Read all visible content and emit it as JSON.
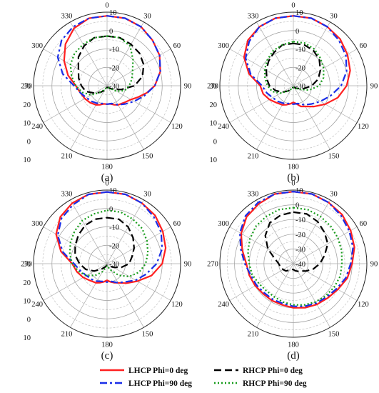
{
  "chart_data": {
    "type": "polar-line",
    "angle_unit": "deg",
    "angle_ticks": [
      0,
      30,
      60,
      90,
      120,
      150,
      180,
      210,
      240,
      270,
      300,
      330
    ],
    "radial_range": [
      -40,
      10
    ],
    "radial_ticks_right": [
      "10",
      "0",
      "-10",
      "-20",
      "-30"
    ],
    "radial_ticks_left": [
      "10",
      "0",
      "10",
      "20",
      "30"
    ],
    "radial_ticks_full": [
      "10",
      "0",
      "-10",
      "-20",
      "-30",
      "-40"
    ],
    "grid": true,
    "legend": [
      {
        "name": "LHCP Phi=0 deg",
        "color": "#ff2020",
        "dash": "solid"
      },
      {
        "name": "RHCP Phi=0 deg",
        "color": "#000000",
        "dash": "dash"
      },
      {
        "name": "LHCP Phi=90 deg",
        "color": "#1a2ee8",
        "dash": "dashdot"
      },
      {
        "name": "RHCP Phi=90 deg",
        "color": "#169c1a",
        "dash": "dot"
      }
    ],
    "panels": [
      {
        "label": "(a)",
        "r_min": -30,
        "series": [
          {
            "name": "LHCP Phi=0 deg",
            "theta": [
              0,
              15,
              30,
              45,
              60,
              75,
              90,
              100,
              110,
              120,
              135,
              150,
              160,
              170,
              180,
              190,
              200,
              210,
              225,
              240,
              255,
              270,
              285,
              300,
              315,
              330,
              345,
              360
            ],
            "r": [
              8,
              8,
              7,
              5,
              3,
              0,
              -4,
              -8,
              -12,
              -15,
              -17,
              -18,
              -19,
              -20,
              -20,
              -20,
              -19,
              -18,
              -17,
              -16,
              -15,
              -13,
              -8,
              -3,
              2,
              6,
              8,
              8
            ]
          },
          {
            "name": "RHCP Phi=0 deg",
            "theta": [
              0,
              15,
              30,
              45,
              60,
              75,
              90,
              105,
              120,
              135,
              150,
              160,
              170,
              180,
              190,
              200,
              210,
              225,
              240,
              255,
              270,
              285,
              300,
              315,
              330,
              345,
              360
            ],
            "r": [
              -3,
              -3,
              -4,
              -5,
              -7,
              -10,
              -15,
              -22,
              -26,
              -28,
              -29,
              -29,
              -29,
              -29,
              -29,
              -28,
              -27,
              -25,
              -22,
              -18,
              -16,
              -14,
              -12,
              -8,
              -5,
              -3,
              -3
            ]
          },
          {
            "name": "LHCP Phi=90 deg",
            "theta": [
              0,
              15,
              30,
              45,
              60,
              75,
              90,
              105,
              120,
              135,
              150,
              165,
              180,
              195,
              210,
              225,
              240,
              255,
              270,
              285,
              300,
              315,
              330,
              345,
              360
            ],
            "r": [
              8,
              8,
              7,
              5,
              3,
              0,
              -4,
              -9,
              -13,
              -16,
              -18,
              -20,
              -20,
              -20,
              -19,
              -18,
              -17,
              -15,
              -12,
              -5,
              1,
              5,
              7,
              8,
              8
            ]
          },
          {
            "name": "RHCP Phi=90 deg",
            "theta": [
              0,
              15,
              30,
              45,
              60,
              75,
              90,
              105,
              120,
              135,
              150,
              165,
              180,
              195,
              210,
              225,
              240,
              255,
              270,
              285,
              300,
              315,
              330,
              345,
              360
            ],
            "r": [
              -3,
              -3,
              -5,
              -10,
              -14,
              -16,
              -18,
              -20,
              -24,
              -28,
              -29,
              -29,
              -29,
              -29,
              -28,
              -25,
              -20,
              -16,
              -13,
              -10,
              -7,
              -5,
              -4,
              -3,
              -3
            ]
          }
        ]
      },
      {
        "label": "(b)",
        "r_min": -30,
        "series": [
          {
            "name": "LHCP Phi=0 deg",
            "theta": [
              0,
              15,
              30,
              45,
              60,
              75,
              90,
              105,
              120,
              135,
              150,
              160,
              170,
              180,
              190,
              200,
              210,
              225,
              240,
              255,
              270,
              285,
              300,
              315,
              330,
              345,
              360
            ],
            "r": [
              8,
              8,
              7,
              6,
              4,
              2,
              -1,
              -5,
              -10,
              -14,
              -17,
              -18,
              -20,
              -21,
              -20,
              -19,
              -18,
              -17,
              -15,
              -13,
              -12,
              -5,
              1,
              5,
              7,
              8,
              8
            ]
          },
          {
            "name": "RHCP Phi=0 deg",
            "theta": [
              0,
              15,
              30,
              45,
              60,
              75,
              90,
              105,
              120,
              135,
              150,
              165,
              180,
              195,
              210,
              225,
              240,
              255,
              270,
              285,
              300,
              315,
              330,
              345,
              360
            ],
            "r": [
              -7,
              -7,
              -8,
              -10,
              -13,
              -16,
              -20,
              -24,
              -27,
              -28,
              -29,
              -29,
              -29,
              -29,
              -28,
              -26,
              -23,
              -20,
              -17,
              -15,
              -13,
              -11,
              -9,
              -7,
              -7
            ]
          },
          {
            "name": "LHCP Phi=90 deg",
            "theta": [
              0,
              15,
              30,
              45,
              60,
              75,
              90,
              105,
              120,
              135,
              150,
              165,
              180,
              195,
              210,
              225,
              240,
              255,
              270,
              285,
              300,
              315,
              330,
              345,
              360
            ],
            "r": [
              8,
              8,
              7,
              5,
              3,
              0,
              -4,
              -9,
              -13,
              -16,
              -18,
              -20,
              -20,
              -20,
              -19,
              -18,
              -17,
              -15,
              -13,
              -6,
              0,
              4,
              7,
              8,
              8
            ]
          },
          {
            "name": "RHCP Phi=90 deg",
            "theta": [
              0,
              15,
              30,
              45,
              60,
              75,
              90,
              105,
              120,
              135,
              150,
              165,
              180,
              195,
              210,
              225,
              240,
              255,
              270,
              285,
              300,
              315,
              330,
              345,
              360
            ],
            "r": [
              -6,
              -6,
              -7,
              -9,
              -11,
              -13,
              -16,
              -21,
              -26,
              -28,
              -29,
              -29,
              -29,
              -29,
              -28,
              -26,
              -22,
              -18,
              -16,
              -14,
              -12,
              -10,
              -8,
              -7,
              -6
            ]
          }
        ]
      },
      {
        "label": "(c)",
        "r_min": -30,
        "series": [
          {
            "name": "LHCP Phi=0 deg",
            "theta": [
              0,
              15,
              30,
              45,
              60,
              75,
              90,
              105,
              120,
              135,
              150,
              160,
              170,
              180,
              190,
              200,
              210,
              225,
              240,
              255,
              270,
              285,
              300,
              315,
              330,
              345,
              360
            ],
            "r": [
              9,
              9,
              8,
              7,
              5,
              3,
              0,
              -5,
              -11,
              -15,
              -18,
              -19,
              -20,
              -21,
              -20,
              -19,
              -18,
              -17,
              -15,
              -13,
              -11,
              -4,
              2,
              6,
              8,
              9,
              9
            ]
          },
          {
            "name": "RHCP Phi=0 deg",
            "theta": [
              0,
              15,
              30,
              45,
              60,
              75,
              90,
              105,
              120,
              135,
              150,
              165,
              180,
              195,
              210,
              225,
              240,
              255,
              270,
              285,
              300,
              315,
              330,
              345,
              360
            ],
            "r": [
              -5,
              -5,
              -7,
              -10,
              -13,
              -16,
              -18,
              -22,
              -26,
              -28,
              -29,
              -29,
              -29,
              -29,
              -28,
              -26,
              -22,
              -18,
              -15,
              -12,
              -10,
              -8,
              -6,
              -5,
              -5
            ]
          },
          {
            "name": "LHCP Phi=90 deg",
            "theta": [
              0,
              15,
              30,
              45,
              60,
              75,
              90,
              105,
              120,
              135,
              150,
              165,
              180,
              195,
              210,
              225,
              240,
              255,
              270,
              285,
              300,
              315,
              330,
              345,
              360
            ],
            "r": [
              9,
              9,
              8,
              6,
              4,
              1,
              -3,
              -8,
              -12,
              -16,
              -18,
              -20,
              -20,
              -20,
              -19,
              -18,
              -17,
              -15,
              -12,
              -5,
              1,
              5,
              7,
              9,
              9
            ]
          },
          {
            "name": "RHCP Phi=90 deg",
            "theta": [
              0,
              15,
              30,
              45,
              60,
              75,
              90,
              105,
              120,
              135,
              150,
              165,
              180,
              195,
              210,
              225,
              240,
              255,
              270,
              285,
              300,
              315,
              330,
              345,
              360
            ],
            "r": [
              -1,
              -1,
              -2,
              -3,
              -5,
              -7,
              -9,
              -12,
              -16,
              -21,
              -26,
              -28,
              -29,
              -28,
              -25,
              -21,
              -17,
              -14,
              -11,
              -9,
              -7,
              -5,
              -3,
              -2,
              -1
            ]
          }
        ]
      },
      {
        "label": "(d)",
        "r_min": -40,
        "series": [
          {
            "name": "LHCP Phi=0 deg",
            "theta": [
              0,
              15,
              30,
              45,
              60,
              75,
              90,
              105,
              120,
              135,
              150,
              165,
              180,
              195,
              210,
              225,
              240,
              255,
              270,
              285,
              300,
              315,
              330,
              345,
              360
            ],
            "r": [
              9,
              9,
              8,
              7,
              5,
              3,
              0,
              -2,
              -5,
              -7,
              -8,
              -9,
              -10,
              -11,
              -11,
              -11,
              -10,
              -9,
              -8,
              -4,
              1,
              5,
              7,
              9,
              9
            ]
          },
          {
            "name": "RHCP Phi=0 deg",
            "theta": [
              0,
              15,
              30,
              45,
              60,
              75,
              90,
              105,
              120,
              135,
              150,
              165,
              180,
              195,
              210,
              225,
              240,
              255,
              270,
              285,
              300,
              315,
              330,
              345,
              360
            ],
            "r": [
              -5,
              -5,
              -7,
              -10,
              -13,
              -18,
              -22,
              -26,
              -30,
              -33,
              -34,
              -35,
              -36,
              -36,
              -35,
              -33,
              -32,
              -31,
              -30,
              -27,
              -20,
              -13,
              -8,
              -6,
              -5
            ]
          },
          {
            "name": "LHCP Phi=90 deg",
            "theta": [
              0,
              15,
              30,
              45,
              60,
              75,
              90,
              105,
              120,
              135,
              150,
              165,
              180,
              195,
              210,
              225,
              240,
              255,
              270,
              285,
              300,
              315,
              330,
              345,
              360
            ],
            "r": [
              9,
              9,
              8,
              6,
              4,
              2,
              -1,
              -3,
              -6,
              -8,
              -9,
              -10,
              -11,
              -12,
              -12,
              -12,
              -11,
              -10,
              -7,
              -3,
              2,
              6,
              8,
              9,
              9
            ]
          },
          {
            "name": "RHCP Phi=90 deg",
            "theta": [
              0,
              15,
              30,
              45,
              60,
              75,
              90,
              105,
              120,
              135,
              150,
              165,
              180,
              195,
              210,
              225,
              240,
              255,
              270,
              285,
              300,
              315,
              330,
              345,
              360
            ],
            "r": [
              -2,
              -2,
              -3,
              -4,
              -5,
              -6,
              -7,
              -7,
              -8,
              -9,
              -10,
              -11,
              -12,
              -13,
              -14,
              -14,
              -13,
              -11,
              -10,
              -8,
              -6,
              -4,
              -3,
              -2,
              -2
            ]
          }
        ]
      }
    ]
  }
}
